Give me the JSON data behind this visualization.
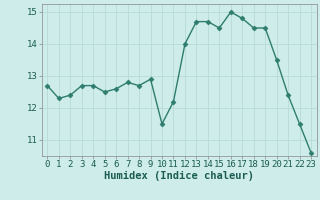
{
  "x": [
    0,
    1,
    2,
    3,
    4,
    5,
    6,
    7,
    8,
    9,
    10,
    11,
    12,
    13,
    14,
    15,
    16,
    17,
    18,
    19,
    20,
    21,
    22,
    23
  ],
  "y": [
    12.7,
    12.3,
    12.4,
    12.7,
    12.7,
    12.5,
    12.6,
    12.8,
    12.7,
    12.9,
    11.5,
    12.2,
    14.0,
    14.7,
    14.7,
    14.5,
    15.0,
    14.8,
    14.5,
    14.5,
    13.5,
    12.4,
    11.5,
    10.6
  ],
  "line_color": "#2e7d6e",
  "marker": "D",
  "markersize": 2.5,
  "linewidth": 1.0,
  "bg_color": "#ceecea",
  "grid_color": "#b8dbd8",
  "xlabel": "Humidex (Indice chaleur)",
  "xlim": [
    -0.5,
    23.5
  ],
  "ylim": [
    10.5,
    15.25
  ],
  "yticks": [
    11,
    12,
    13,
    14,
    15
  ],
  "xticks": [
    0,
    1,
    2,
    3,
    4,
    5,
    6,
    7,
    8,
    9,
    10,
    11,
    12,
    13,
    14,
    15,
    16,
    17,
    18,
    19,
    20,
    21,
    22,
    23
  ],
  "xlabel_fontsize": 7.5,
  "tick_fontsize": 6.5
}
